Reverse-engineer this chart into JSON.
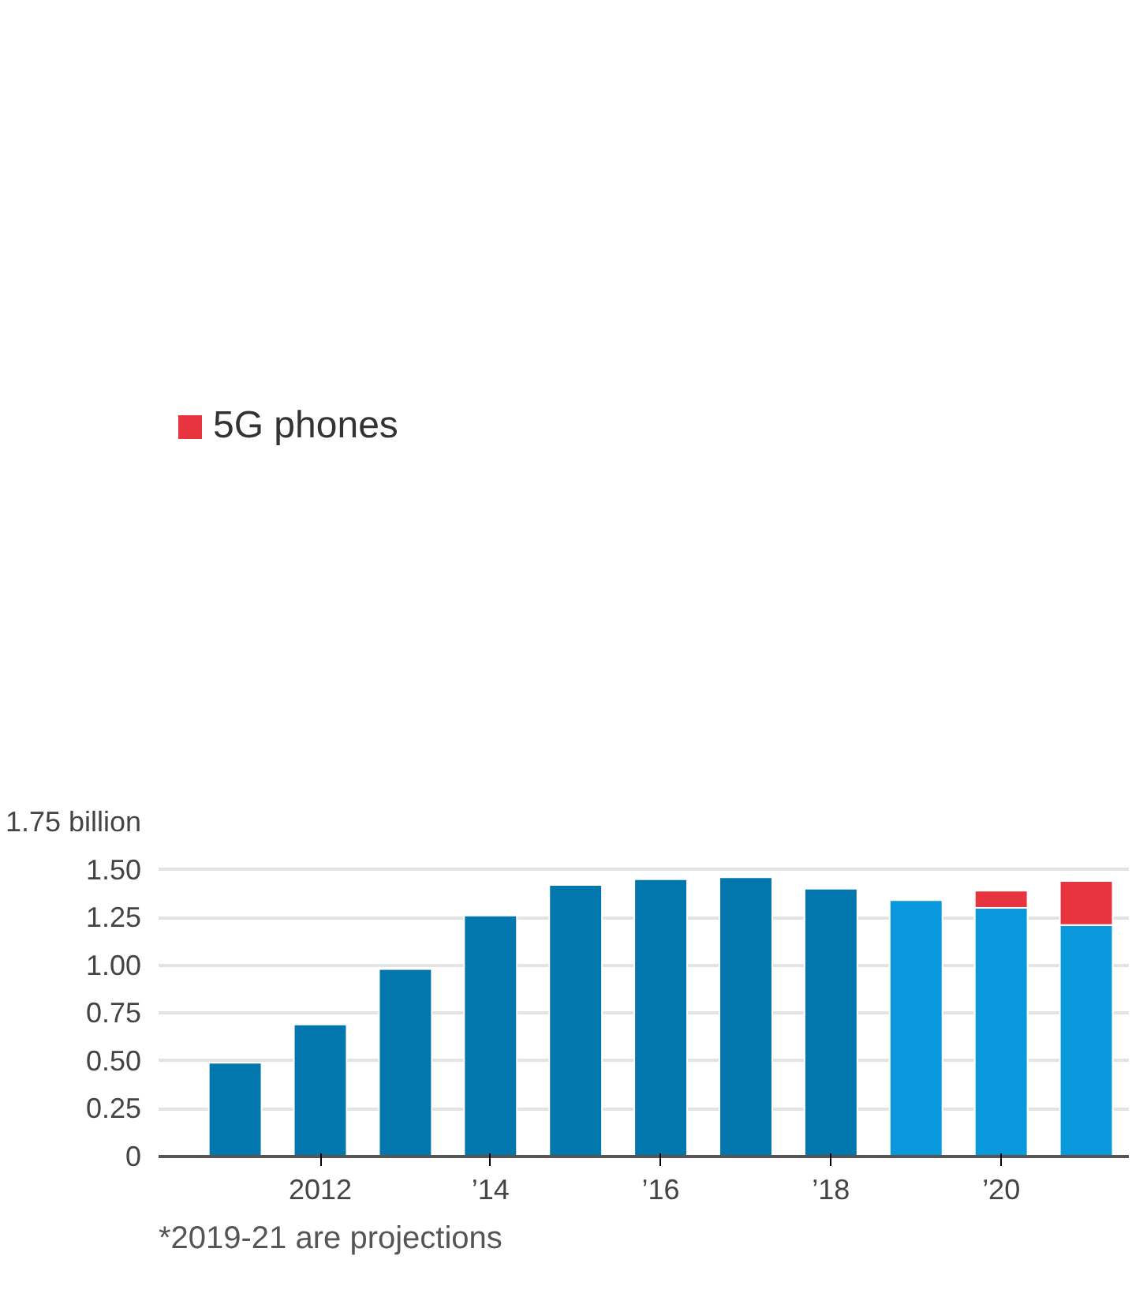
{
  "chart_data": {
    "type": "bar",
    "stacked": true,
    "categories": [
      null,
      "2012",
      null,
      "’14",
      null,
      "’16",
      null,
      "’18",
      null,
      "’20",
      null
    ],
    "series": [
      {
        "colors": [
          "#0277ad",
          "#0277ad",
          "#0277ad",
          "#0277ad",
          "#0277ad",
          "#0277ad",
          "#0277ad",
          "#0277ad",
          "#0a98dc",
          "#0a98dc",
          "#0a98dc"
        ],
        "values": [
          0.49,
          0.69,
          0.98,
          1.26,
          1.42,
          1.45,
          1.46,
          1.4,
          1.34,
          1.3,
          1.21
        ]
      },
      {
        "name": "5G phones",
        "color": "#e8343f",
        "values": [
          null,
          null,
          null,
          null,
          null,
          null,
          null,
          null,
          null,
          0.09,
          0.23
        ]
      }
    ],
    "ylim": [
      0,
      1.75
    ],
    "yticks": [
      0,
      0.25,
      {
        "value": 0.5,
        "label": "0.50"
      },
      0.75,
      {
        "value": 1.0,
        "label": "1.00"
      },
      1.25,
      {
        "value": 1.5,
        "label": "1.50"
      },
      {
        "value": 1.75,
        "label": "1.75 billion"
      }
    ],
    "grid": "y",
    "legend": "top left",
    "annotations": [
      "*2019-21 are projections"
    ]
  }
}
